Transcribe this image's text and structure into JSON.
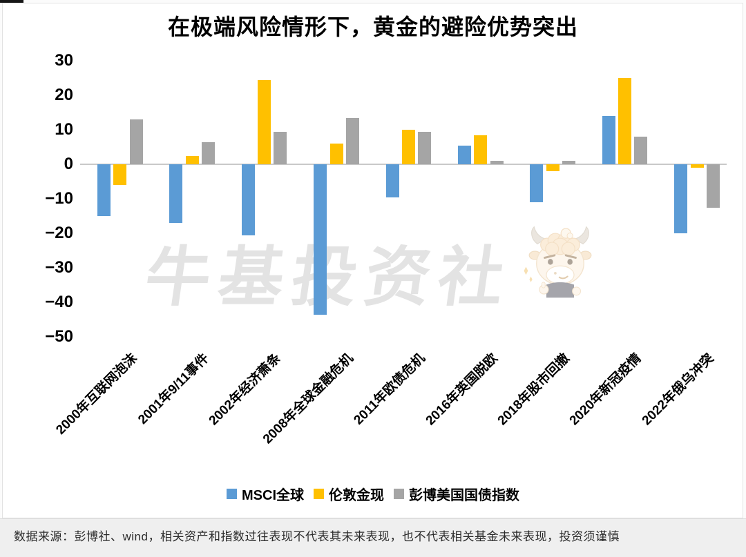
{
  "page": {
    "title": "在极端风险情形下，黄金的避险优势突出",
    "watermark": "牛基投资社",
    "mascot": "bull-cartoon-watermark",
    "source_note": "数据来源：彭博社、wind，相关资产和指数过往表现不代表其未来表现，也不代表相关基金未来表现，投资须谨慎"
  },
  "chart_data": {
    "type": "bar",
    "title": "在极端风险情形下，黄金的避险优势突出",
    "categories": [
      "2000年互联网泡沫",
      "2001年9/11事件",
      "2002年经济萧条",
      "2008年全球金融危机",
      "2011年欧债危机",
      "2016年英国脱欧",
      "2018年股市回撤",
      "2020年新冠疫情",
      "2022年俄乌冲突"
    ],
    "series": [
      {
        "name": "MSCI全球",
        "color": "#5B9BD5",
        "values": [
          -15,
          -17,
          -20.5,
          -43.5,
          -9.5,
          5.5,
          -11,
          14,
          -20
        ]
      },
      {
        "name": "伦敦金现",
        "color": "#FFC000",
        "values": [
          -6,
          2.5,
          24.5,
          6,
          10,
          8.5,
          -2,
          25,
          -1
        ]
      },
      {
        "name": "彭博美国国债指数",
        "color": "#A5A5A5",
        "values": [
          13,
          6.5,
          9.5,
          13.5,
          9.5,
          1,
          1,
          8,
          -12.5
        ]
      }
    ],
    "yticks": [
      30,
      20,
      10,
      0,
      -10,
      -20,
      -30,
      -40,
      -50
    ],
    "ylim": [
      -50,
      30
    ],
    "xlabel": "",
    "ylabel": "",
    "grid": false,
    "legend_position": "bottom",
    "zero_line_color": "#c9c9c9"
  }
}
